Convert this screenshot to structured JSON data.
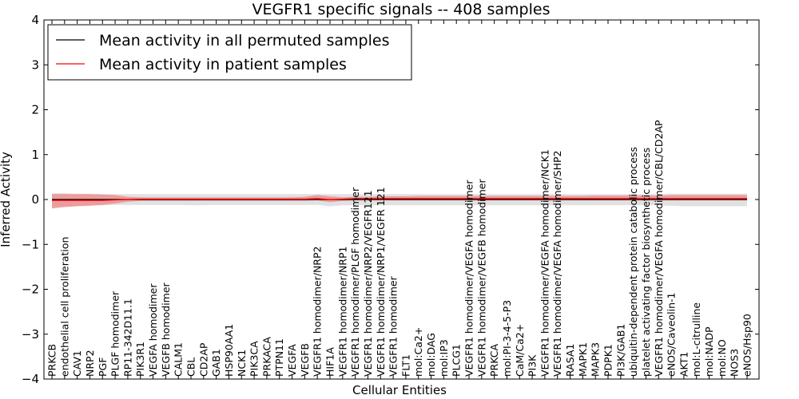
{
  "chart_data": {
    "type": "line",
    "title": "VEGFR1 specific signals -- 408 samples",
    "xlabel": "Cellular Entities",
    "ylabel": "Inferred Activity",
    "ylim": [
      -4,
      4
    ],
    "yticks": [
      -4,
      -3,
      -2,
      -1,
      0,
      1,
      2,
      3,
      4
    ],
    "legend_position": "top-left",
    "grid": false,
    "categories": [
      "PRKCB",
      "endothelial cell proliferation",
      "CAV1",
      "NRP2",
      "PGF",
      "PLGF homodimer",
      "RP11-342D11.1",
      "PIK3R1",
      "VEGFA homodimer",
      "VEGFB homodimer",
      "CALM1",
      "CBL",
      "CD2AP",
      "GAB1",
      "HSP90AA1",
      "NCK1",
      "PIK3CA",
      "PRKACA",
      "PTPN11",
      "VEGFA",
      "VEGFB",
      "VEGFR1 homodimer/NRP2",
      "HIF1A",
      "VEGFR1 homodimer/NRP1",
      "VEGFR1 homodimer/PLGF homodimer",
      "VEGFR1 homodimer/NRP2/VEGFR121",
      "VEGFR1 homodimer/NRP1/VEGFR 121",
      "VEGFR1 homodimer",
      "FLT1",
      "mol:Ca2+",
      "mol:DAG",
      "mol:IP3",
      "PLCG1",
      "VEGFR1 homodimer/VEGFA homodimer",
      "VEGFR1 homodimer/VEGFB homodimer",
      "PRKCA",
      "mol:PI-3-4-5-P3",
      "CaM/Ca2+",
      "PI3K",
      "VEGFR1 homodimer/VEGFA homodimer/NCK1",
      "VEGFR1 homodimer/VEGFA homodimer/SHP2",
      "RASA1",
      "MAPK1",
      "MAPK3",
      "PDPK1",
      "PI3K/GAB1",
      "ubiquitin-dependent protein catabolic process",
      "platelet activating factor biosynthetic process",
      "VEGFR1 homodimer/VEGFA homodimer/CBL/CD2AP",
      "eNOS/Caveolin-1",
      "AKT1",
      "mol:L-citrulline",
      "mol:NADP",
      "mol:NO",
      "NOS3",
      "eNOS/Hsp90"
    ],
    "series": [
      {
        "name": "Mean activity in all permuted samples",
        "color": "#000000",
        "values": [
          0,
          0,
          0,
          0,
          0,
          0,
          0,
          0,
          0,
          0,
          0,
          0,
          0,
          0,
          0,
          0,
          0,
          0,
          0,
          0,
          0,
          0,
          0,
          0,
          0,
          0,
          0,
          0,
          0,
          0,
          0,
          0,
          0,
          0,
          0,
          0,
          0,
          0,
          0,
          0,
          0,
          0,
          0,
          0,
          0,
          0,
          0,
          0,
          0,
          0,
          0,
          0,
          0,
          0,
          0,
          0
        ],
        "band_lower": [
          -0.17,
          -0.15,
          -0.14,
          -0.13,
          -0.13,
          -0.12,
          -0.12,
          -0.12,
          -0.12,
          -0.12,
          -0.12,
          -0.13,
          -0.13,
          -0.12,
          -0.12,
          -0.12,
          -0.12,
          -0.12,
          -0.12,
          -0.12,
          -0.12,
          -0.12,
          -0.15,
          -0.13,
          -0.13,
          -0.13,
          -0.13,
          -0.13,
          -0.13,
          -0.13,
          -0.13,
          -0.13,
          -0.13,
          -0.13,
          -0.13,
          -0.13,
          -0.13,
          -0.13,
          -0.13,
          -0.13,
          -0.13,
          -0.13,
          -0.13,
          -0.13,
          -0.13,
          -0.13,
          -0.13,
          -0.13,
          -0.13,
          -0.14,
          -0.15,
          -0.15,
          -0.15,
          -0.15,
          -0.15,
          -0.15
        ],
        "band_upper": [
          0.14,
          0.14,
          0.13,
          0.13,
          0.12,
          0.12,
          0.12,
          0.12,
          0.12,
          0.12,
          0.12,
          0.12,
          0.12,
          0.12,
          0.12,
          0.12,
          0.12,
          0.12,
          0.12,
          0.12,
          0.12,
          0.12,
          0.12,
          0.12,
          0.12,
          0.12,
          0.12,
          0.12,
          0.12,
          0.12,
          0.12,
          0.12,
          0.12,
          0.12,
          0.12,
          0.12,
          0.12,
          0.12,
          0.12,
          0.12,
          0.12,
          0.12,
          0.12,
          0.12,
          0.12,
          0.12,
          0.12,
          0.12,
          0.12,
          0.13,
          0.13,
          0.13,
          0.13,
          0.13,
          0.13,
          0.13
        ]
      },
      {
        "name": "Mean activity in patient samples",
        "color": "#ff0000",
        "band_color": "#f08080",
        "values": [
          -0.02,
          -0.02,
          -0.02,
          -0.02,
          -0.02,
          -0.01,
          0.0,
          0.01,
          0.01,
          0.01,
          0.01,
          0.01,
          0.01,
          0.01,
          0.01,
          0.01,
          0.01,
          0.01,
          0.01,
          0.01,
          0.01,
          0.02,
          0.0,
          0.01,
          0.02,
          0.02,
          0.02,
          0.02,
          0.02,
          0.02,
          0.02,
          0.02,
          0.02,
          0.02,
          0.02,
          0.02,
          0.02,
          0.02,
          0.02,
          0.02,
          0.02,
          0.02,
          0.02,
          0.02,
          0.02,
          0.02,
          0.02,
          0.02,
          0.02,
          0.02,
          0.02,
          0.02,
          0.02,
          0.02,
          0.02,
          0.02
        ],
        "band_lower": [
          -0.2,
          -0.17,
          -0.15,
          -0.14,
          -0.12,
          -0.09,
          -0.05,
          -0.03,
          -0.03,
          -0.03,
          -0.03,
          -0.03,
          -0.03,
          -0.03,
          -0.03,
          -0.03,
          -0.03,
          -0.03,
          -0.03,
          -0.03,
          -0.03,
          -0.02,
          -0.06,
          -0.03,
          -0.02,
          -0.02,
          -0.02,
          -0.02,
          -0.02,
          -0.02,
          -0.02,
          -0.02,
          -0.02,
          -0.02,
          -0.02,
          -0.02,
          -0.02,
          -0.02,
          -0.02,
          -0.02,
          -0.02,
          -0.02,
          -0.02,
          -0.02,
          -0.02,
          -0.02,
          -0.02,
          -0.02,
          -0.02,
          -0.02,
          -0.02,
          -0.02,
          -0.02,
          -0.02,
          -0.02,
          -0.02
        ],
        "band_upper": [
          0.12,
          0.12,
          0.12,
          0.12,
          0.11,
          0.1,
          0.06,
          0.05,
          0.05,
          0.05,
          0.05,
          0.05,
          0.05,
          0.05,
          0.05,
          0.05,
          0.05,
          0.05,
          0.05,
          0.05,
          0.06,
          0.1,
          0.07,
          0.05,
          0.06,
          0.06,
          0.07,
          0.07,
          0.07,
          0.08,
          0.08,
          0.08,
          0.08,
          0.08,
          0.08,
          0.08,
          0.08,
          0.08,
          0.08,
          0.08,
          0.08,
          0.08,
          0.08,
          0.09,
          0.09,
          0.09,
          0.09,
          0.09,
          0.09,
          0.1,
          0.1,
          0.1,
          0.1,
          0.1,
          0.1,
          0.1
        ]
      }
    ]
  }
}
